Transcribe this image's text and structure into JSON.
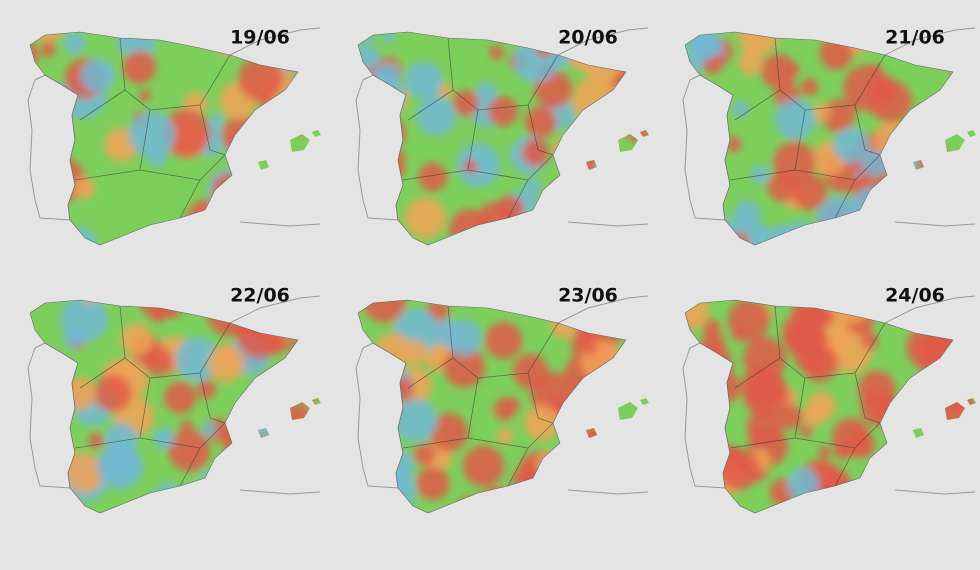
{
  "panels": [
    {
      "date": "19/06"
    },
    {
      "date": "20/06"
    },
    {
      "date": "21/06"
    },
    {
      "date": "22/06"
    },
    {
      "date": "23/06"
    },
    {
      "date": "24/06"
    }
  ]
}
